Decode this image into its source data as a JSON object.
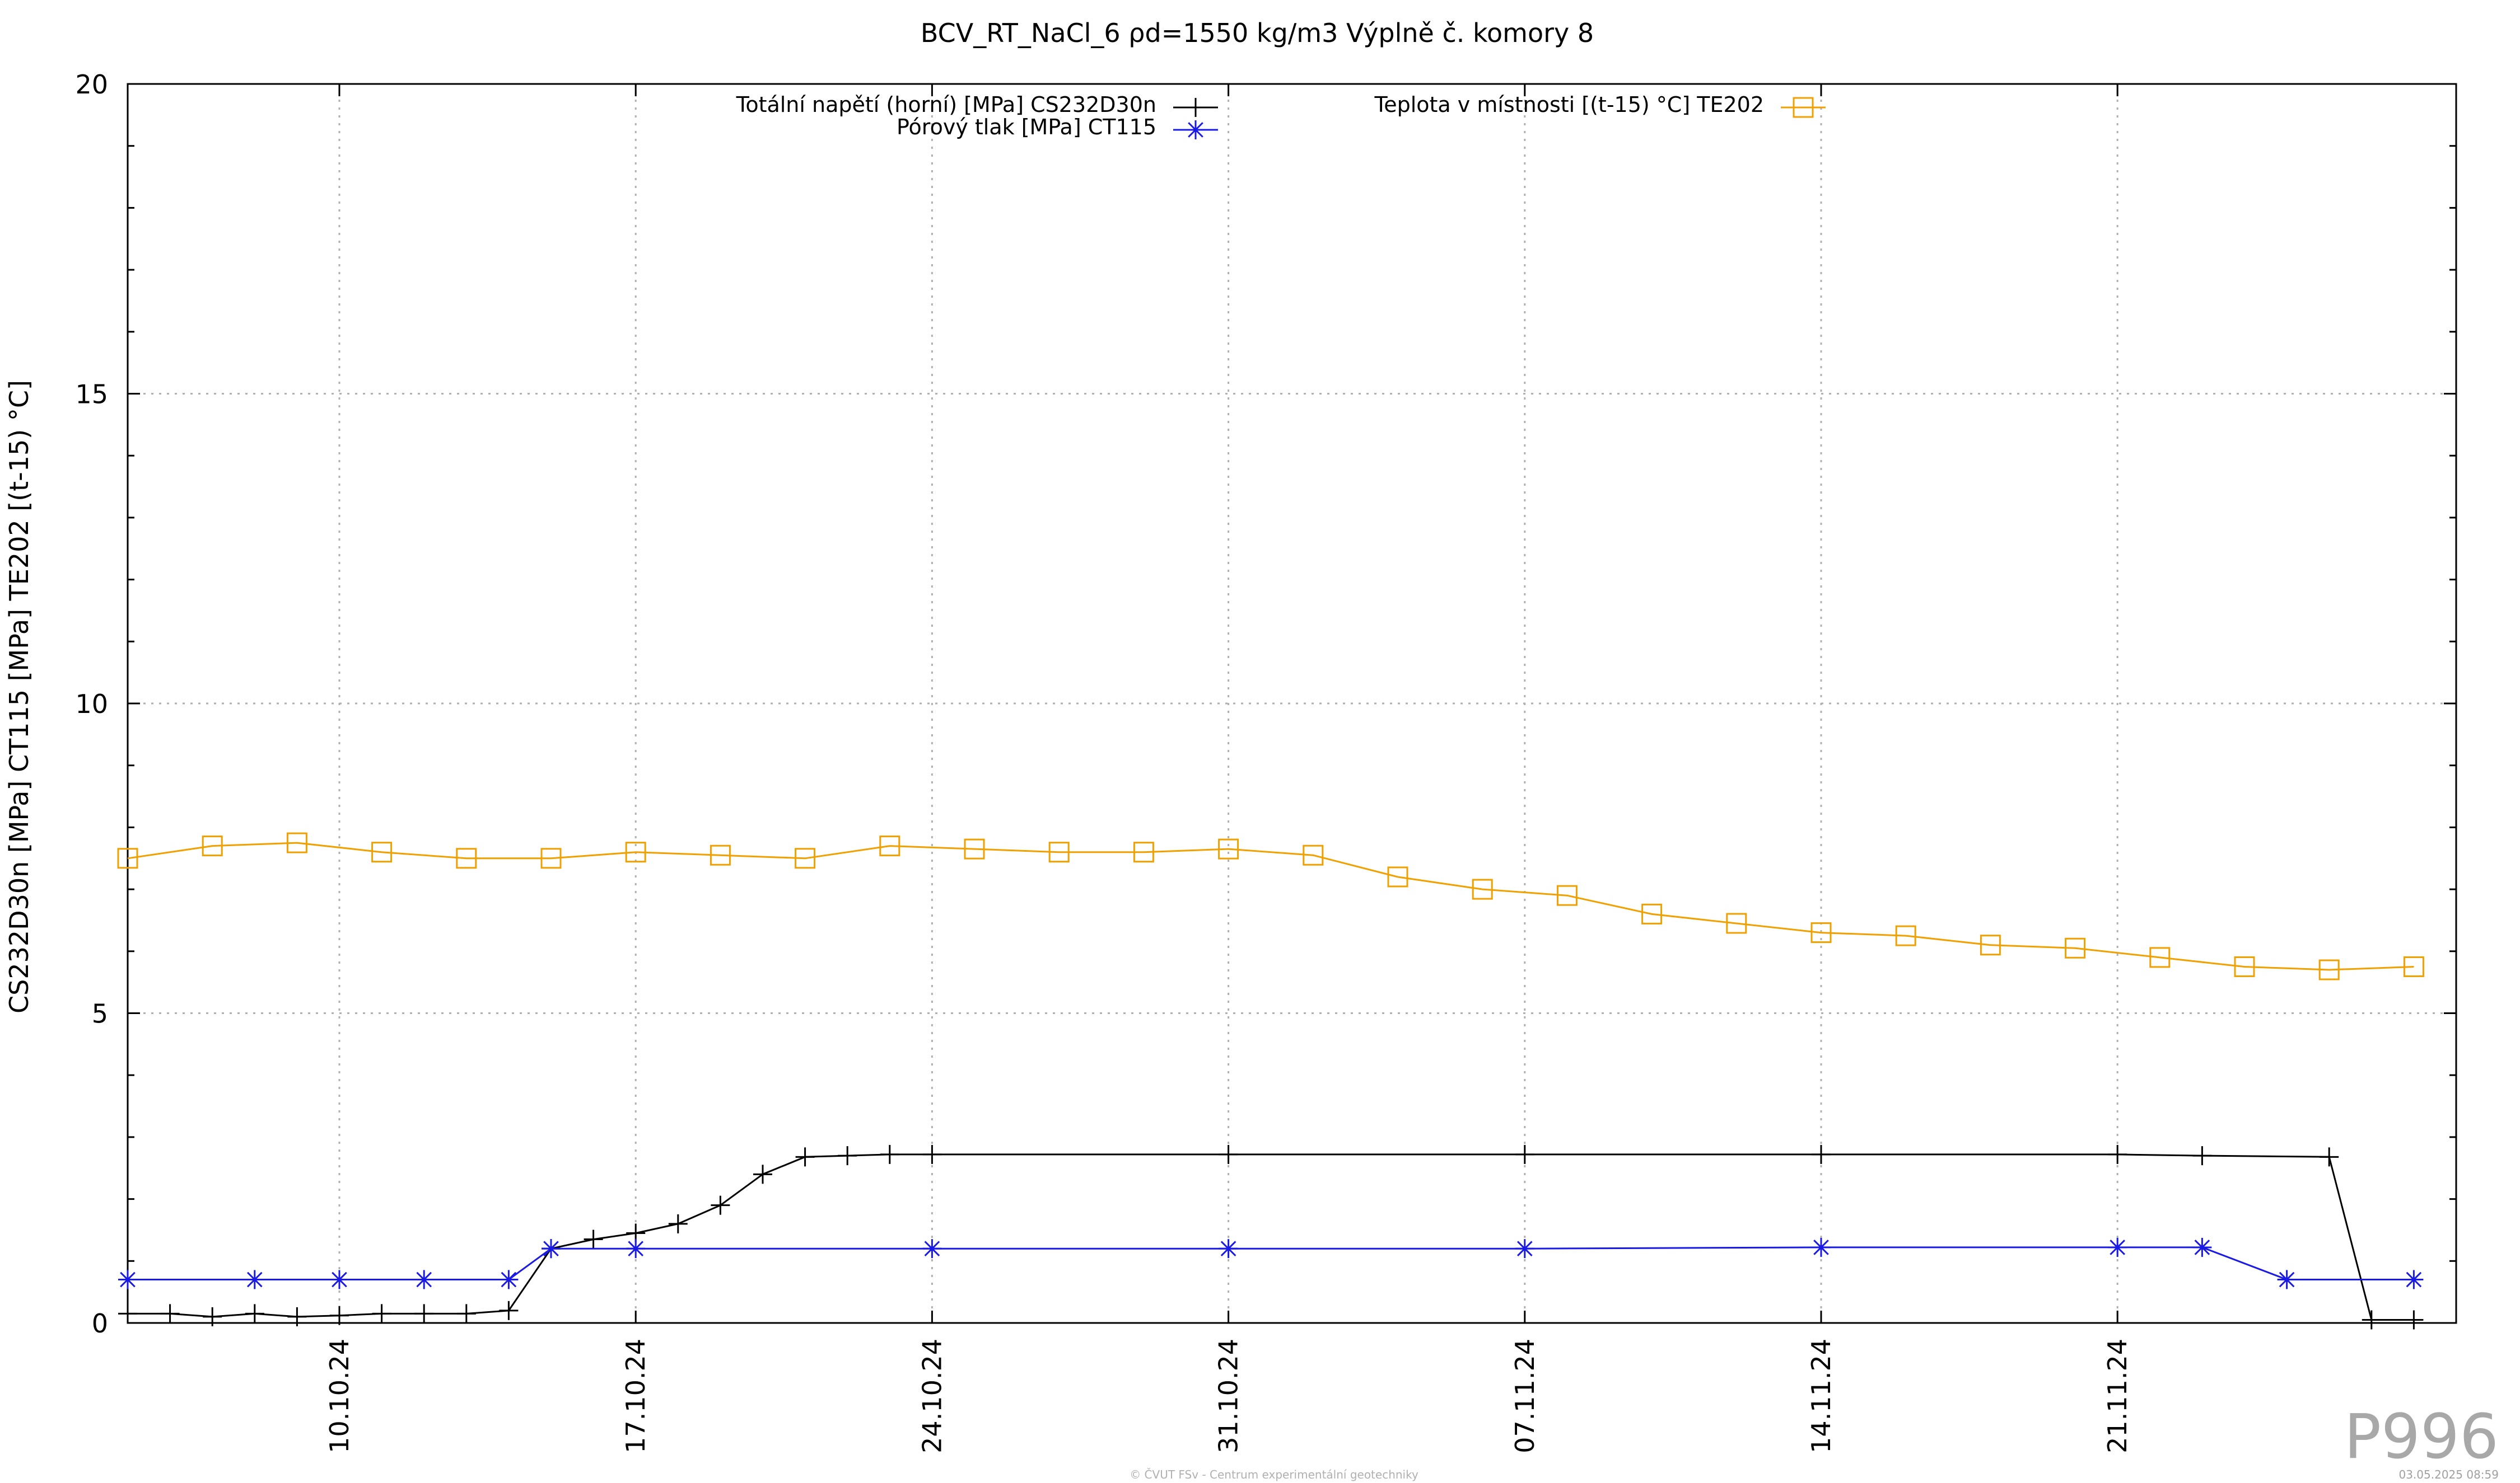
{
  "chart_data": {
    "type": "line",
    "title": "BCV_RT_NaCl_6 ρd=1550 kg/m3 Výplně č. komory 8",
    "ylabel": "CS232D30n [MPa] CT115 [MPa] TE202 [(t-15) °C]",
    "xlabel": "",
    "ylim": [
      0,
      20
    ],
    "y_ticks": [
      "0",
      "5",
      "10",
      "15",
      "20"
    ],
    "y_tick_values": [
      0,
      5,
      10,
      15,
      20
    ],
    "xlim": [
      "2024-10-05",
      "2024-11-29"
    ],
    "x_ticks": [
      "10.10.24",
      "17.10.24",
      "24.10.24",
      "31.10.24",
      "07.11.24",
      "14.11.24",
      "21.11.24"
    ],
    "x_tick_dates": [
      "2024-10-10",
      "2024-10-17",
      "2024-10-24",
      "2024-10-31",
      "2024-11-07",
      "2024-11-14",
      "2024-11-21"
    ],
    "grid": true,
    "legend_placement": "top",
    "series": [
      {
        "name": "Totální napětí (horní) [MPa] CS232D30n",
        "color": "#000000",
        "marker": "plus",
        "x": [
          "2024-10-05",
          "2024-10-06",
          "2024-10-07",
          "2024-10-08",
          "2024-10-09",
          "2024-10-10",
          "2024-10-11",
          "2024-10-12",
          "2024-10-13",
          "2024-10-14",
          "2024-10-15",
          "2024-10-16",
          "2024-10-17",
          "2024-10-18",
          "2024-10-19",
          "2024-10-20",
          "2024-10-21",
          "2024-10-22",
          "2024-10-23",
          "2024-10-24",
          "2024-10-31",
          "2024-11-07",
          "2024-11-14",
          "2024-11-21",
          "2024-11-23",
          "2024-11-26",
          "2024-11-27",
          "2024-11-28"
        ],
        "values": [
          0.15,
          0.15,
          0.1,
          0.15,
          0.1,
          0.12,
          0.15,
          0.15,
          0.15,
          0.2,
          1.2,
          1.35,
          1.45,
          1.6,
          1.9,
          2.4,
          2.68,
          2.7,
          2.72,
          2.72,
          2.72,
          2.72,
          2.72,
          2.72,
          2.7,
          2.68,
          0.05,
          0.05
        ]
      },
      {
        "name": "Pórový tlak [MPa] CT115",
        "color": "#1a1ae6",
        "marker": "star",
        "x": [
          "2024-10-05",
          "2024-10-08",
          "2024-10-10",
          "2024-10-12",
          "2024-10-14",
          "2024-10-15",
          "2024-10-17",
          "2024-10-24",
          "2024-10-31",
          "2024-11-07",
          "2024-11-14",
          "2024-11-21",
          "2024-11-23",
          "2024-11-25",
          "2024-11-28"
        ],
        "values": [
          0.7,
          0.7,
          0.7,
          0.7,
          0.7,
          1.2,
          1.2,
          1.2,
          1.2,
          1.2,
          1.22,
          1.22,
          1.22,
          0.7,
          0.7
        ]
      },
      {
        "name": "Teplota v místnosti [(t-15) °C] TE202",
        "color": "#f0a000",
        "marker": "square",
        "x": [
          "2024-10-05",
          "2024-10-07",
          "2024-10-09",
          "2024-10-11",
          "2024-10-13",
          "2024-10-15",
          "2024-10-17",
          "2024-10-19",
          "2024-10-21",
          "2024-10-23",
          "2024-10-25",
          "2024-10-27",
          "2024-10-29",
          "2024-10-31",
          "2024-11-02",
          "2024-11-04",
          "2024-11-06",
          "2024-11-08",
          "2024-11-10",
          "2024-11-12",
          "2024-11-14",
          "2024-11-16",
          "2024-11-18",
          "2024-11-20",
          "2024-11-22",
          "2024-11-24",
          "2024-11-26",
          "2024-11-28"
        ],
        "values": [
          7.5,
          7.7,
          7.75,
          7.6,
          7.5,
          7.5,
          7.6,
          7.55,
          7.5,
          7.7,
          7.65,
          7.6,
          7.6,
          7.65,
          7.55,
          7.2,
          7.0,
          6.9,
          6.6,
          6.45,
          6.3,
          6.25,
          6.1,
          6.05,
          5.9,
          5.75,
          5.7,
          5.75
        ]
      }
    ]
  },
  "watermark": "P996",
  "footer": {
    "credit": "© ČVUT FSv - Centrum experimentální geotechniky",
    "timestamp": "03.05.2025 08:59"
  }
}
